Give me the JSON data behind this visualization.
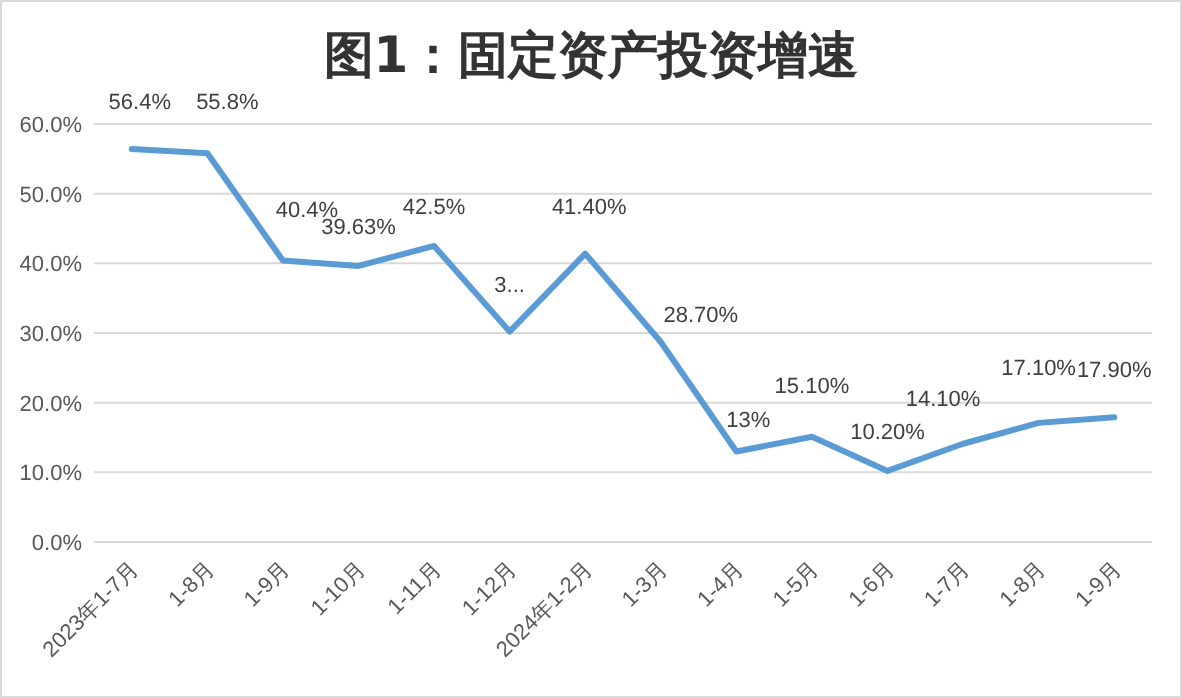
{
  "chart_data": {
    "type": "line",
    "title": "图1：固定资产投资增速",
    "categories": [
      "2023年1-7月",
      "1-8月",
      "1-9月",
      "1-10月",
      "1-11月",
      "1-12月",
      "2024年1-2月",
      "1-3月",
      "1-4月",
      "1-5月",
      "1-6月",
      "1-7月",
      "1-8月",
      "1-9月"
    ],
    "series": [
      {
        "color": "#5b9bd5",
        "values": [
          56.4,
          55.8,
          40.4,
          39.63,
          42.5,
          30.2,
          41.4,
          28.7,
          13,
          15.1,
          10.2,
          14.1,
          17.1,
          17.9
        ],
        "value_labels": [
          "56.4%",
          "55.8%",
          "40.4%",
          "39.63%",
          "42.5%",
          "3...",
          "41.40%",
          "28.70%",
          "13%",
          "15.10%",
          "10.20%",
          "14.10%",
          "17.10%",
          "17.90%"
        ]
      }
    ],
    "ylim": [
      0,
      60
    ],
    "yticks": [
      {
        "value": 0,
        "label": "0.0%"
      },
      {
        "value": 10,
        "label": "10.0%"
      },
      {
        "value": 20,
        "label": "20.0%"
      },
      {
        "value": 30,
        "label": "30.0%"
      },
      {
        "value": 40,
        "label": "40.0%"
      },
      {
        "value": 50,
        "label": "50.0%"
      },
      {
        "value": 60,
        "label": "60.0%"
      }
    ],
    "grid": "y",
    "marker": "none",
    "line_style": "solid"
  }
}
